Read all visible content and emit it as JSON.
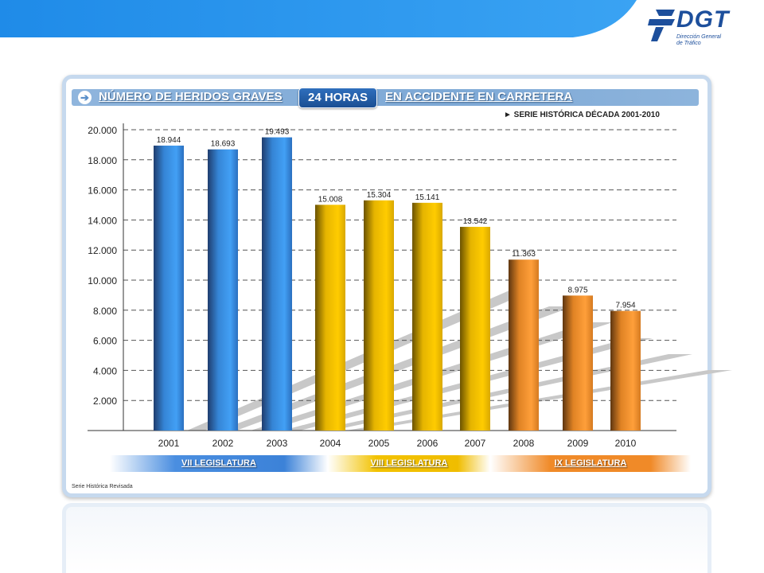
{
  "header": {
    "title_part1": "NÚMERO DE HERIDOS GRAVES",
    "badge": "24 HORAS",
    "title_part2": "EN ACCIDENTE EN CARRETERA",
    "series_note": "► SERIE HISTÓRICA DÉCADA 2001-2010"
  },
  "logo": {
    "word": "DGT",
    "subtitle_line1": "Dirección General",
    "subtitle_line2": "de Tráfico"
  },
  "colors": {
    "blue": "#3a8fe6",
    "yellow": "#f5c000",
    "orange": "#f0902a",
    "accent": "#1d4f9c"
  },
  "chart_data": {
    "type": "bar",
    "categories": [
      "2001",
      "2002",
      "2003",
      "2004",
      "2005",
      "2006",
      "2007",
      "2008",
      "2009",
      "2010"
    ],
    "values": [
      18944,
      18693,
      19493,
      15008,
      15304,
      15141,
      13542,
      11363,
      8975,
      7954
    ],
    "value_labels": [
      "18.944",
      "18.693",
      "19.493",
      "15.008",
      "15.304",
      "15.141",
      "13.542",
      "11.363",
      "8.975",
      "7.954"
    ],
    "bar_groups": [
      "blue",
      "blue",
      "blue",
      "yellow",
      "yellow",
      "yellow",
      "yellow",
      "orange",
      "orange",
      "orange"
    ],
    "y_ticks": [
      2000,
      4000,
      6000,
      8000,
      10000,
      12000,
      14000,
      16000,
      18000,
      20000
    ],
    "y_tick_labels": [
      "2.000",
      "4.000",
      "6.000",
      "8.000",
      "10.000",
      "12.000",
      "14.000",
      "16.000",
      "18.000",
      "20.000"
    ],
    "ylim": [
      0,
      20000
    ],
    "grid": true,
    "title": "",
    "xlabel": "",
    "ylabel": ""
  },
  "legislaturas": [
    {
      "label": "VII LEGISLATURA"
    },
    {
      "label": "VIII LEGISLATURA"
    },
    {
      "label": "IX LEGISLATURA"
    }
  ],
  "footnote": "Serie Histórica Revisada"
}
